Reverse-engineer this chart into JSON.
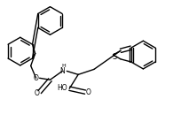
{
  "background_color": "#ffffff",
  "line_color": "#000000",
  "lw": 1.0,
  "fig_width": 2.04,
  "fig_height": 1.38,
  "dpi": 100,
  "xlim": [
    0,
    204
  ],
  "ylim": [
    0,
    138
  ]
}
